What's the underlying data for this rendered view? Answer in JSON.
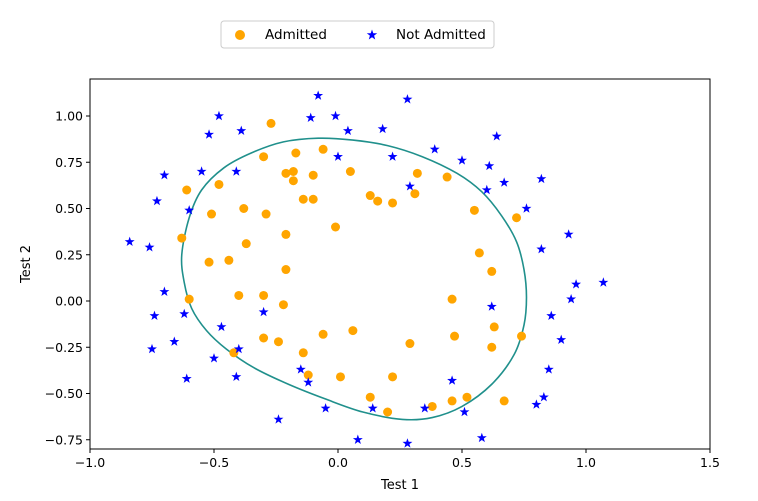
{
  "chart_data": {
    "type": "scatter",
    "title": "",
    "xlabel": "Test 1",
    "ylabel": "Test 2",
    "xlim": [
      -1.0,
      1.5
    ],
    "ylim": [
      -0.8,
      1.2
    ],
    "xticks": [
      -1.0,
      -0.5,
      0.0,
      0.5,
      1.0,
      1.5
    ],
    "yticks": [
      -0.75,
      -0.5,
      -0.25,
      0.0,
      0.25,
      0.5,
      0.75,
      1.0
    ],
    "xtick_labels": [
      "−1.0",
      "−0.5",
      "0.0",
      "0.5",
      "1.0",
      "1.5"
    ],
    "ytick_labels": [
      "−0.75",
      "−0.50",
      "−0.25",
      "0.00",
      "0.25",
      "0.50",
      "0.75",
      "1.00"
    ],
    "grid": false,
    "legend_position": "top-center",
    "series": [
      {
        "name": "Admitted",
        "marker": "circle",
        "color": "#ffa500",
        "points": [
          [
            -0.27,
            0.96
          ],
          [
            -0.3,
            0.78
          ],
          [
            -0.17,
            0.8
          ],
          [
            -0.06,
            0.82
          ],
          [
            -0.21,
            0.69
          ],
          [
            -0.18,
            0.7
          ],
          [
            -0.18,
            0.65
          ],
          [
            -0.1,
            0.68
          ],
          [
            0.05,
            0.7
          ],
          [
            0.32,
            0.69
          ],
          [
            0.44,
            0.67
          ],
          [
            -0.61,
            0.6
          ],
          [
            -0.48,
            0.63
          ],
          [
            0.13,
            0.57
          ],
          [
            0.31,
            0.58
          ],
          [
            -0.14,
            0.55
          ],
          [
            -0.1,
            0.55
          ],
          [
            0.16,
            0.54
          ],
          [
            0.22,
            0.53
          ],
          [
            -0.38,
            0.5
          ],
          [
            -0.51,
            0.47
          ],
          [
            -0.29,
            0.47
          ],
          [
            0.55,
            0.49
          ],
          [
            0.72,
            0.45
          ],
          [
            -0.01,
            0.4
          ],
          [
            -0.21,
            0.36
          ],
          [
            -0.63,
            0.34
          ],
          [
            -0.37,
            0.31
          ],
          [
            0.57,
            0.26
          ],
          [
            -0.52,
            0.21
          ],
          [
            -0.44,
            0.22
          ],
          [
            -0.21,
            0.17
          ],
          [
            0.62,
            0.16
          ],
          [
            -0.6,
            0.01
          ],
          [
            -0.4,
            0.03
          ],
          [
            -0.3,
            0.03
          ],
          [
            -0.22,
            -0.02
          ],
          [
            0.46,
            0.01
          ],
          [
            0.63,
            -0.14
          ],
          [
            -0.06,
            -0.18
          ],
          [
            0.06,
            -0.16
          ],
          [
            0.47,
            -0.19
          ],
          [
            -0.3,
            -0.2
          ],
          [
            -0.24,
            -0.22
          ],
          [
            0.29,
            -0.23
          ],
          [
            0.62,
            -0.25
          ],
          [
            0.74,
            -0.19
          ],
          [
            -0.42,
            -0.28
          ],
          [
            -0.14,
            -0.28
          ],
          [
            -0.12,
            -0.4
          ],
          [
            0.01,
            -0.41
          ],
          [
            0.22,
            -0.41
          ],
          [
            0.13,
            -0.52
          ],
          [
            0.2,
            -0.6
          ],
          [
            0.38,
            -0.57
          ],
          [
            0.46,
            -0.54
          ],
          [
            0.52,
            -0.52
          ],
          [
            0.67,
            -0.54
          ]
        ]
      },
      {
        "name": "Not Admitted",
        "marker": "star",
        "color": "#0000ff",
        "points": [
          [
            -0.48,
            1.0
          ],
          [
            -0.08,
            1.11
          ],
          [
            -0.01,
            1.0
          ],
          [
            0.28,
            1.09
          ],
          [
            -0.52,
            0.9
          ],
          [
            -0.39,
            0.92
          ],
          [
            -0.11,
            0.99
          ],
          [
            0.04,
            0.92
          ],
          [
            0.18,
            0.93
          ],
          [
            0.64,
            0.89
          ],
          [
            0.39,
            0.82
          ],
          [
            0.0,
            0.78
          ],
          [
            0.22,
            0.78
          ],
          [
            0.5,
            0.76
          ],
          [
            0.61,
            0.73
          ],
          [
            -0.7,
            0.68
          ],
          [
            -0.41,
            0.7
          ],
          [
            -0.55,
            0.7
          ],
          [
            0.82,
            0.66
          ],
          [
            0.67,
            0.64
          ],
          [
            0.29,
            0.62
          ],
          [
            0.6,
            0.6
          ],
          [
            -0.73,
            0.54
          ],
          [
            -0.6,
            0.49
          ],
          [
            0.76,
            0.5
          ],
          [
            0.93,
            0.36
          ],
          [
            -0.84,
            0.32
          ],
          [
            -0.76,
            0.29
          ],
          [
            0.82,
            0.28
          ],
          [
            0.96,
            0.09
          ],
          [
            1.07,
            0.1
          ],
          [
            -0.7,
            0.05
          ],
          [
            0.94,
            0.01
          ],
          [
            0.62,
            -0.03
          ],
          [
            -0.74,
            -0.08
          ],
          [
            -0.62,
            -0.07
          ],
          [
            -0.3,
            -0.06
          ],
          [
            0.86,
            -0.08
          ],
          [
            -0.47,
            -0.14
          ],
          [
            -0.66,
            -0.22
          ],
          [
            0.9,
            -0.21
          ],
          [
            -0.75,
            -0.26
          ],
          [
            -0.4,
            -0.26
          ],
          [
            -0.5,
            -0.31
          ],
          [
            -0.15,
            -0.37
          ],
          [
            0.85,
            -0.37
          ],
          [
            -0.61,
            -0.42
          ],
          [
            -0.41,
            -0.41
          ],
          [
            -0.12,
            -0.44
          ],
          [
            0.46,
            -0.43
          ],
          [
            0.83,
            -0.52
          ],
          [
            0.8,
            -0.56
          ],
          [
            -0.05,
            -0.58
          ],
          [
            0.14,
            -0.58
          ],
          [
            0.35,
            -0.58
          ],
          [
            0.51,
            -0.6
          ],
          [
            -0.24,
            -0.64
          ],
          [
            0.08,
            -0.75
          ],
          [
            0.28,
            -0.77
          ],
          [
            0.58,
            -0.74
          ]
        ]
      }
    ],
    "decision_boundary": {
      "type": "closed-curve",
      "color": "#20908c",
      "points": [
        [
          -0.63,
          0.25
        ],
        [
          -0.6,
          0.45
        ],
        [
          -0.55,
          0.6
        ],
        [
          -0.46,
          0.72
        ],
        [
          -0.35,
          0.8
        ],
        [
          -0.22,
          0.86
        ],
        [
          -0.08,
          0.88
        ],
        [
          0.06,
          0.87
        ],
        [
          0.2,
          0.84
        ],
        [
          0.34,
          0.78
        ],
        [
          0.48,
          0.69
        ],
        [
          0.58,
          0.59
        ],
        [
          0.66,
          0.46
        ],
        [
          0.72,
          0.32
        ],
        [
          0.75,
          0.17
        ],
        [
          0.76,
          0.02
        ],
        [
          0.75,
          -0.13
        ],
        [
          0.71,
          -0.29
        ],
        [
          0.62,
          -0.45
        ],
        [
          0.5,
          -0.57
        ],
        [
          0.38,
          -0.63
        ],
        [
          0.26,
          -0.64
        ],
        [
          0.1,
          -0.6
        ],
        [
          -0.05,
          -0.53
        ],
        [
          -0.2,
          -0.45
        ],
        [
          -0.34,
          -0.36
        ],
        [
          -0.45,
          -0.26
        ],
        [
          -0.53,
          -0.16
        ],
        [
          -0.59,
          -0.04
        ],
        [
          -0.62,
          0.1
        ]
      ]
    }
  }
}
